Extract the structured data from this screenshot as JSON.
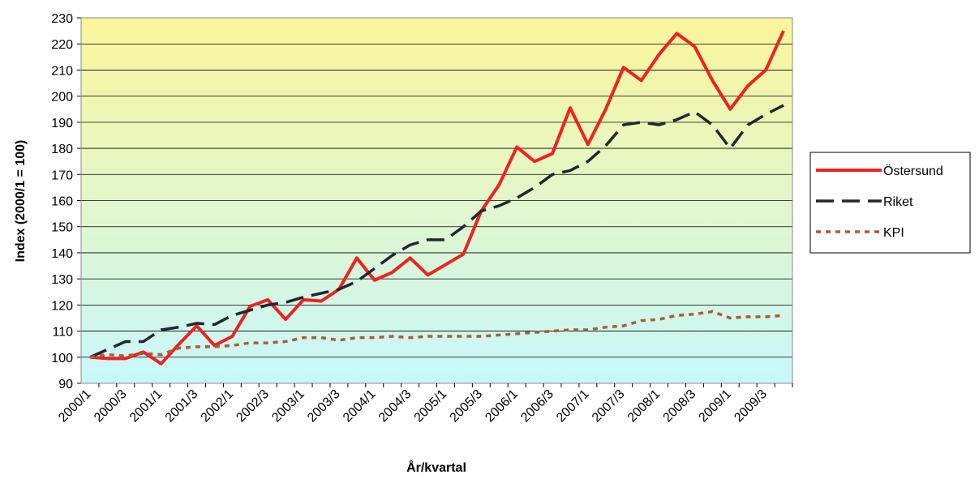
{
  "chart_data": {
    "type": "line",
    "y_label": "Index (2000/1 = 100)",
    "x_label": "År/kvartal",
    "categories": [
      "2000/1",
      null,
      "2000/3",
      null,
      "2001/1",
      null,
      "2001/3",
      null,
      "2002/1",
      null,
      "2002/3",
      null,
      "2003/1",
      null,
      "2003/3",
      null,
      "2004/1",
      null,
      "2004/3",
      null,
      "2005/1",
      null,
      "2005/3",
      null,
      "2006/1",
      null,
      "2006/3",
      null,
      "2007/1",
      null,
      "2007/3",
      null,
      "2008/1",
      null,
      "2008/3",
      null,
      "2009/1",
      null,
      "2009/3",
      null
    ],
    "series": [
      {
        "name": "Östersund",
        "color": "#ee2222",
        "dash": "solid",
        "values": [
          100,
          99.5,
          99.5,
          102,
          97.5,
          105,
          112,
          104.5,
          108,
          119.5,
          122,
          114.5,
          122,
          121.5,
          126,
          138,
          129.5,
          132.5,
          138,
          131.5,
          135.5,
          139.5,
          156,
          166,
          180.5,
          175,
          178,
          195.5,
          181.5,
          195,
          211,
          206,
          216,
          224,
          219,
          206,
          195,
          204,
          210,
          225
        ]
      },
      {
        "name": "Riket",
        "color": "#22272e",
        "dash": "dashed",
        "values": [
          100,
          103,
          106,
          106,
          110.5,
          111.5,
          113,
          112.5,
          116,
          118,
          120,
          121,
          123,
          124.5,
          126,
          129,
          134,
          139,
          143,
          145,
          145,
          150,
          156,
          158,
          161,
          165,
          170,
          171.5,
          175,
          181,
          189,
          190,
          189,
          191,
          194,
          189,
          180,
          189,
          193,
          196.5
        ]
      },
      {
        "name": "KPI",
        "color": "#b05a32",
        "dash": "dotted",
        "values": [
          100,
          101,
          100.5,
          101.5,
          101,
          103.5,
          104,
          104,
          104.5,
          105.5,
          105.5,
          106,
          107.5,
          107.5,
          106.5,
          107.5,
          107.5,
          108,
          107.5,
          108,
          108,
          108,
          108,
          108.5,
          109,
          109.5,
          110,
          110.5,
          110.5,
          111.5,
          112,
          114,
          114.5,
          116,
          116.5,
          117.5,
          115,
          115.5,
          115.5,
          116
        ]
      }
    ],
    "ylim": [
      90,
      230
    ],
    "yticks": [
      90,
      100,
      110,
      120,
      130,
      140,
      150,
      160,
      170,
      180,
      190,
      200,
      210,
      220,
      230
    ],
    "grid": true,
    "legend": "right"
  }
}
